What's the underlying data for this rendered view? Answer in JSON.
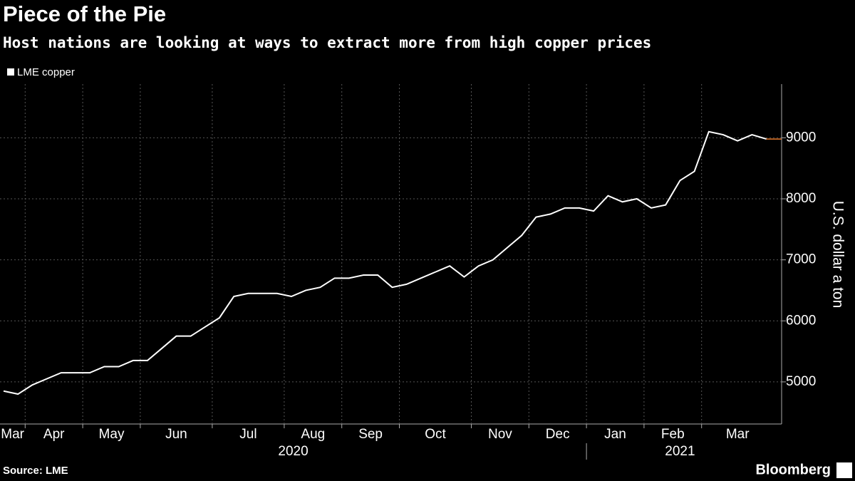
{
  "chart_data": {
    "type": "line",
    "title": "Piece of the Pie",
    "subtitle": "Host nations are looking at ways to extract more from high copper prices",
    "y_label": "U.S. dollar a ton",
    "source": "Source: LME",
    "brand": "Bloomberg",
    "categories": [
      "Mar",
      null,
      "Apr",
      null,
      null,
      null,
      "May",
      null,
      null,
      null,
      "Jun",
      null,
      null,
      null,
      null,
      "Jul",
      null,
      null,
      null,
      null,
      "Aug",
      null,
      null,
      null,
      "Sep",
      null,
      null,
      null,
      "Oct",
      null,
      null,
      null,
      null,
      "Nov",
      null,
      null,
      null,
      "Dec",
      null,
      null,
      null,
      "Jan",
      null,
      null,
      null,
      "Feb",
      null,
      null,
      null,
      "Mar",
      null,
      null,
      null,
      null
    ],
    "years": [
      "2020",
      null,
      null,
      null,
      null,
      null,
      null,
      null,
      null,
      null,
      null,
      null,
      null,
      null,
      null,
      null,
      null,
      null,
      null,
      null,
      null,
      null,
      null,
      null,
      null,
      null,
      null,
      null,
      null,
      null,
      null,
      null,
      null,
      null,
      null,
      null,
      null,
      null,
      null,
      null,
      null,
      "2021",
      null,
      null,
      null,
      null,
      null,
      null,
      null,
      null,
      null,
      null,
      null,
      null
    ],
    "series": [
      {
        "name": "LME copper",
        "color": "#ffffff",
        "values": [
          4850,
          4800,
          4950,
          5050,
          5150,
          5150,
          5150,
          5250,
          5250,
          5350,
          5350,
          5550,
          5750,
          5750,
          5900,
          6050,
          6400,
          6450,
          6450,
          6450,
          6400,
          6500,
          6550,
          6700,
          6700,
          6750,
          6750,
          6550,
          6600,
          6700,
          6800,
          6900,
          6720,
          6900,
          7000,
          7200,
          7400,
          7700,
          7750,
          7850,
          7850,
          7800,
          8050,
          7950,
          8000,
          7850,
          7900,
          8300,
          8450,
          9100,
          9050,
          8950,
          9050,
          8980
        ]
      }
    ],
    "last_value_color": "#e8792b",
    "ylim": [
      4310,
      9880
    ],
    "yticks": [
      5000,
      6000,
      7000,
      8000,
      9000
    ],
    "grid": true
  }
}
